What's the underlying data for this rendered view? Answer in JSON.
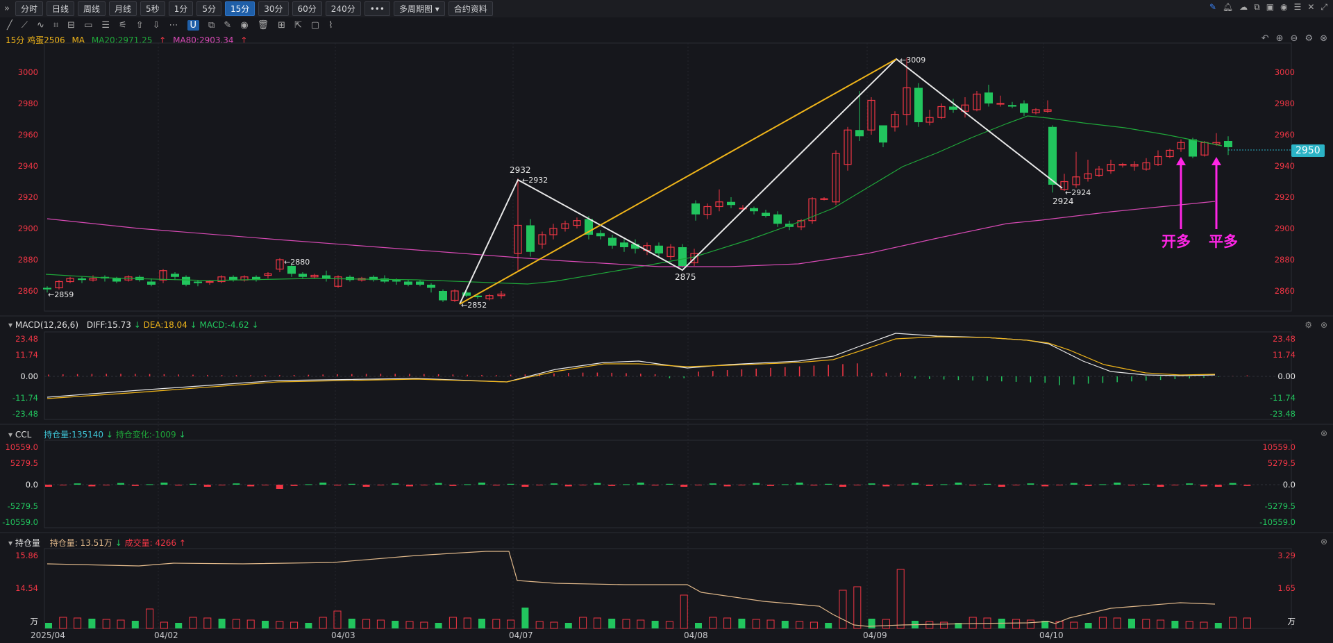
{
  "toolbar": {
    "expand_icon": "»",
    "periods": [
      "分时",
      "日线",
      "周线",
      "月线",
      "5秒",
      "1分",
      "5分",
      "15分",
      "30分",
      "60分",
      "240分"
    ],
    "active_period": "15分",
    "more_label": "•••",
    "multi_period": "多周期图",
    "contract_info": "合约资料"
  },
  "legend": {
    "symbol": "15分 鸡蛋2506",
    "ma_label": "MA",
    "ma20": "MA20:2971.25",
    "ma80": "MA80:2903.34"
  },
  "main_axis": {
    "ticks": [
      "3000",
      "2980",
      "2960",
      "2940",
      "2920",
      "2900",
      "2880",
      "2860"
    ],
    "current_price": "2950"
  },
  "pivots": {
    "p2932": "2932",
    "p2932_arrow": "←2932",
    "p3009_arrow": "←3009",
    "p2875": "2875",
    "p2924": "2924",
    "p2924_arrow": "←2924",
    "p2852_arrow": "←2852",
    "p2859_arrow": "←2859",
    "p2880_arrow": "←2880"
  },
  "annotations": {
    "open_long": "开多",
    "close_long": "平多"
  },
  "macd": {
    "title": "MACD(12,26,6)",
    "diff": "DIFF:15.73",
    "dea": "DEA:18.04",
    "macd": "MACD:-4.62",
    "ticks": [
      "23.48",
      "11.74",
      "0.00",
      "-11.74",
      "-23.48"
    ]
  },
  "ccl": {
    "title": "CCL",
    "oi": "持仓量:135140",
    "oi_change": "持仓变化:-1009",
    "ticks": [
      "10559.0",
      "5279.5",
      "0.0",
      "-5279.5",
      "-10559.0"
    ]
  },
  "oi_panel": {
    "title": "持仓量",
    "oi": "持仓量: 13.51万",
    "volume": "成交量: 4266",
    "left_ticks": [
      "15.86",
      "14.54",
      "万"
    ],
    "right_ticks": [
      "3.29",
      "1.65",
      "万"
    ]
  },
  "xaxis": [
    "2025/04",
    "04/02",
    "04/03",
    "04/07",
    "04/08",
    "04/09",
    "04/10"
  ],
  "colors": {
    "up": "#f23645",
    "down": "#22c55e",
    "ma20": "#1fa83a",
    "ma80": "#d84ab5",
    "yellow": "#f0b51a",
    "white": "#e8e8e8",
    "magenta": "#ff26e6"
  }
}
